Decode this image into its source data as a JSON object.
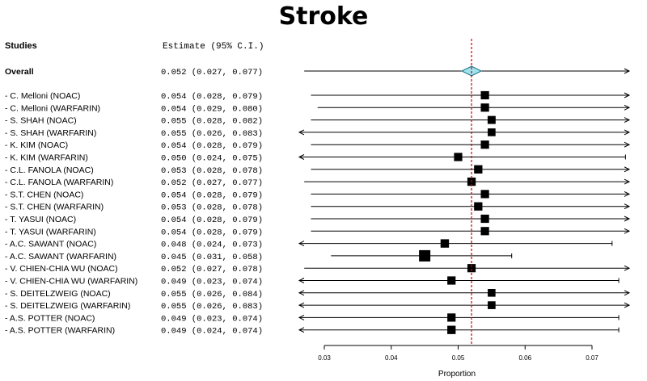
{
  "chart_data": {
    "type": "forest",
    "title": "Stroke",
    "header_studies": "Studies",
    "header_estimate": "Estimate (95% C.I.)",
    "xlabel": "Proportion",
    "xlim": [
      0.025,
      0.0775
    ],
    "ticks": [
      0.03,
      0.04,
      0.05,
      0.06,
      0.07
    ],
    "tick_labels": [
      "0.03",
      "0.04",
      "0.05",
      "0.06",
      "0.07"
    ],
    "reference_line": 0.052,
    "overall": {
      "label": "Overall",
      "estimate": 0.052,
      "lower": 0.027,
      "upper": 0.077,
      "text": "0.052 (0.027, 0.077)"
    },
    "studies": [
      {
        "label": "- C. Melloni (NOAC)",
        "estimate": 0.054,
        "lower": 0.028,
        "upper": 0.079,
        "text": "0.054 (0.028, 0.079)"
      },
      {
        "label": "- C. Melloni (WARFARIN)",
        "estimate": 0.054,
        "lower": 0.029,
        "upper": 0.08,
        "text": "0.054 (0.029, 0.080)"
      },
      {
        "label": "- S. SHAH (NOAC)",
        "estimate": 0.055,
        "lower": 0.028,
        "upper": 0.082,
        "text": "0.055 (0.028, 0.082)"
      },
      {
        "label": "- S. SHAH (WARFARIN)",
        "estimate": 0.055,
        "lower": 0.026,
        "upper": 0.083,
        "text": "0.055 (0.026, 0.083)"
      },
      {
        "label": "- K. KIM (NOAC)",
        "estimate": 0.054,
        "lower": 0.028,
        "upper": 0.079,
        "text": "0.054 (0.028, 0.079)"
      },
      {
        "label": "- K. KIM (WARFARIN)",
        "estimate": 0.05,
        "lower": 0.024,
        "upper": 0.075,
        "text": "0.050 (0.024, 0.075)"
      },
      {
        "label": "- C.L. FANOLA (NOAC)",
        "estimate": 0.053,
        "lower": 0.028,
        "upper": 0.078,
        "text": "0.053 (0.028, 0.078)"
      },
      {
        "label": "- C.L. FANOLA (WARFARIN)",
        "estimate": 0.052,
        "lower": 0.027,
        "upper": 0.077,
        "text": "0.052 (0.027, 0.077)"
      },
      {
        "label": "- S.T. CHEN (NOAC)",
        "estimate": 0.054,
        "lower": 0.028,
        "upper": 0.079,
        "text": "0.054 (0.028, 0.079)"
      },
      {
        "label": "- S.T. CHEN (WARFARIN)",
        "estimate": 0.053,
        "lower": 0.028,
        "upper": 0.078,
        "text": "0.053 (0.028, 0.078)"
      },
      {
        "label": "- T. YASUI (NOAC)",
        "estimate": 0.054,
        "lower": 0.028,
        "upper": 0.079,
        "text": "0.054 (0.028, 0.079)"
      },
      {
        "label": "- T. YASUI (WARFARIN)",
        "estimate": 0.054,
        "lower": 0.028,
        "upper": 0.079,
        "text": "0.054 (0.028, 0.079)"
      },
      {
        "label": "- A.C. SAWANT (NOAC)",
        "estimate": 0.048,
        "lower": 0.024,
        "upper": 0.073,
        "text": "0.048 (0.024, 0.073)"
      },
      {
        "label": "- A.C. SAWANT (WARFARIN)",
        "estimate": 0.045,
        "lower": 0.031,
        "upper": 0.058,
        "text": "0.045 (0.031, 0.058)"
      },
      {
        "label": "- V. CHIEN-CHIA WU (NOAC)",
        "estimate": 0.052,
        "lower": 0.027,
        "upper": 0.078,
        "text": "0.052 (0.027, 0.078)"
      },
      {
        "label": "- V. CHIEN-CHIA WU (WARFARIN)",
        "estimate": 0.049,
        "lower": 0.023,
        "upper": 0.074,
        "text": "0.049 (0.023, 0.074)"
      },
      {
        "label": "- S. DEITELZWEIG (NOAC)",
        "estimate": 0.055,
        "lower": 0.026,
        "upper": 0.084,
        "text": "0.055 (0.026, 0.084)"
      },
      {
        "label": "- S. DEITELZWEIG (WARFARIN)",
        "estimate": 0.055,
        "lower": 0.026,
        "upper": 0.083,
        "text": "0.055 (0.026, 0.083)"
      },
      {
        "label": "- A.S. POTTER (NOAC)",
        "estimate": 0.049,
        "lower": 0.023,
        "upper": 0.074,
        "text": "0.049 (0.023, 0.074)"
      },
      {
        "label": "- A.S. POTTER (WARFARIN)",
        "estimate": 0.049,
        "lower": 0.024,
        "upper": 0.074,
        "text": "0.049 (0.024, 0.074)"
      }
    ],
    "colors": {
      "marker": "#000000",
      "line": "#000000",
      "diamond_fill": "#9fe3ef",
      "diamond_stroke": "#1a6f80",
      "reference": "#cc0000"
    }
  }
}
